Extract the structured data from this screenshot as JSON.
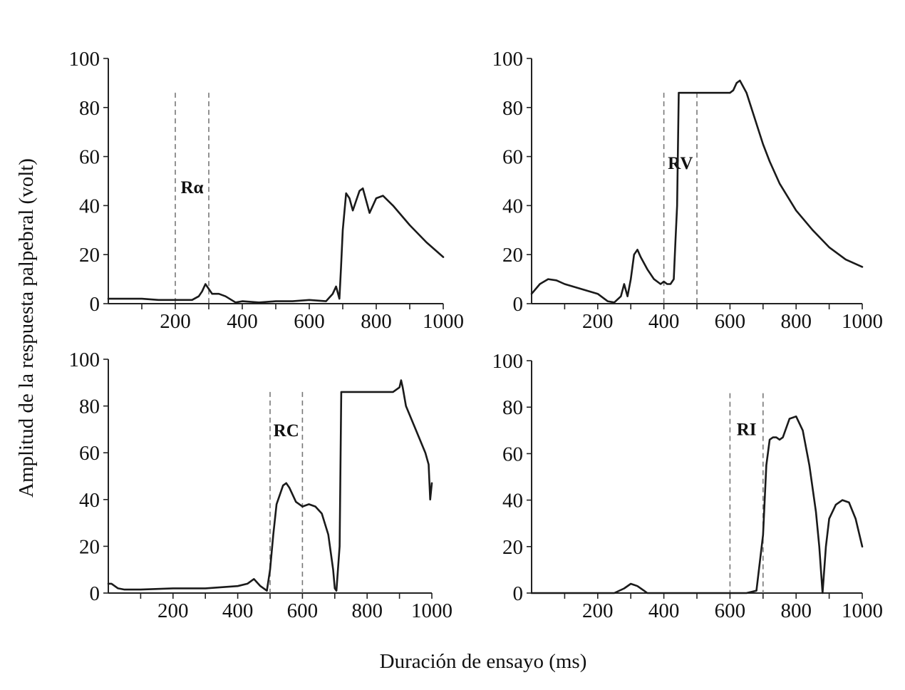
{
  "figure": {
    "ylabel": "Amplitud de la respuesta palpebral (volt)",
    "xlabel": "Duración de ensayo (ms)"
  },
  "chart_data": [
    {
      "type": "line",
      "annotation": "Rα",
      "xlim": [
        0,
        1000
      ],
      "ylim": [
        0,
        100
      ],
      "xticks": [
        200,
        400,
        600,
        800,
        1000
      ],
      "yticks": [
        0,
        20,
        40,
        60,
        80,
        100
      ],
      "markers": [
        200,
        300
      ],
      "series": [
        {
          "x": [
            0,
            50,
            100,
            150,
            200,
            250,
            270,
            280,
            290,
            300,
            310,
            330,
            350,
            380,
            400,
            450,
            500,
            550,
            600,
            650,
            670,
            680,
            690,
            695,
            700,
            710,
            720,
            730,
            740,
            750,
            760,
            770,
            780,
            790,
            800,
            820,
            850,
            900,
            950,
            1000
          ],
          "y": [
            2,
            2,
            2,
            1.5,
            1.5,
            1.5,
            3,
            5,
            8,
            6,
            4,
            4,
            3,
            0.5,
            1,
            0.5,
            1,
            1,
            1.5,
            1,
            4,
            7,
            2,
            15,
            30,
            45,
            43,
            38,
            42,
            46,
            47,
            42,
            37,
            40,
            43,
            44,
            40,
            32,
            25,
            19
          ]
        }
      ]
    },
    {
      "type": "line",
      "annotation": "RV",
      "xlim": [
        0,
        1000
      ],
      "ylim": [
        0,
        100
      ],
      "xticks": [
        200,
        400,
        600,
        800,
        1000
      ],
      "yticks": [
        0,
        20,
        40,
        60,
        80,
        100
      ],
      "markers": [
        400,
        500
      ],
      "series": [
        {
          "x": [
            0,
            25,
            50,
            75,
            100,
            150,
            200,
            230,
            250,
            270,
            280,
            290,
            300,
            310,
            320,
            330,
            350,
            370,
            390,
            400,
            410,
            420,
            430,
            435,
            440,
            445,
            450,
            470,
            500,
            550,
            600,
            610,
            620,
            630,
            650,
            700,
            720,
            750,
            800,
            850,
            900,
            950,
            1000
          ],
          "y": [
            4,
            8,
            10,
            9.5,
            8,
            6,
            4,
            1,
            0.5,
            3,
            8,
            3,
            10,
            20,
            22,
            19,
            14,
            10,
            8,
            9,
            8,
            8,
            10,
            25,
            40,
            86,
            86,
            86,
            86,
            86,
            86,
            87,
            90,
            91,
            86,
            65,
            58,
            49,
            38,
            30,
            23,
            18,
            15
          ]
        }
      ]
    },
    {
      "type": "line",
      "annotation": "RC",
      "xlim": [
        0,
        1000
      ],
      "ylim": [
        0,
        100
      ],
      "xticks": [
        200,
        400,
        600,
        800,
        1000
      ],
      "yticks": [
        0,
        20,
        40,
        60,
        80,
        100
      ],
      "markers": [
        500,
        600
      ],
      "series": [
        {
          "x": [
            0,
            10,
            30,
            50,
            100,
            200,
            300,
            400,
            430,
            450,
            470,
            490,
            500,
            510,
            520,
            540,
            550,
            560,
            580,
            600,
            620,
            640,
            660,
            680,
            695,
            700,
            705,
            715,
            720,
            730,
            750,
            800,
            850,
            880,
            900,
            905,
            910,
            920,
            950,
            980,
            990,
            995,
            1000
          ],
          "y": [
            4,
            4,
            2,
            1.5,
            1.5,
            2,
            2,
            3,
            4,
            6,
            3,
            1,
            10,
            25,
            38,
            46,
            47,
            45,
            39,
            37,
            38,
            37,
            34,
            25,
            10,
            2,
            1,
            20,
            86,
            86,
            86,
            86,
            86,
            86,
            88,
            91,
            88,
            80,
            70,
            60,
            55,
            40,
            47
          ]
        }
      ]
    },
    {
      "type": "line",
      "annotation": "RI",
      "xlim": [
        0,
        1000
      ],
      "ylim": [
        0,
        100
      ],
      "xticks": [
        200,
        400,
        600,
        800,
        1000
      ],
      "yticks": [
        0,
        20,
        40,
        60,
        80,
        100
      ],
      "markers": [
        600,
        700
      ],
      "series": [
        {
          "x": [
            0,
            100,
            200,
            250,
            280,
            300,
            320,
            340,
            350,
            400,
            500,
            600,
            650,
            680,
            700,
            710,
            720,
            730,
            740,
            750,
            760,
            780,
            800,
            820,
            840,
            860,
            870,
            880,
            890,
            900,
            920,
            940,
            960,
            980,
            1000
          ],
          "y": [
            0,
            0,
            0,
            0,
            2,
            4,
            3,
            1,
            0,
            0,
            0,
            0,
            0,
            1,
            25,
            55,
            66,
            67,
            67,
            66,
            67,
            75,
            76,
            70,
            55,
            35,
            20,
            0,
            20,
            32,
            38,
            40,
            39,
            32,
            20
          ]
        }
      ]
    }
  ]
}
